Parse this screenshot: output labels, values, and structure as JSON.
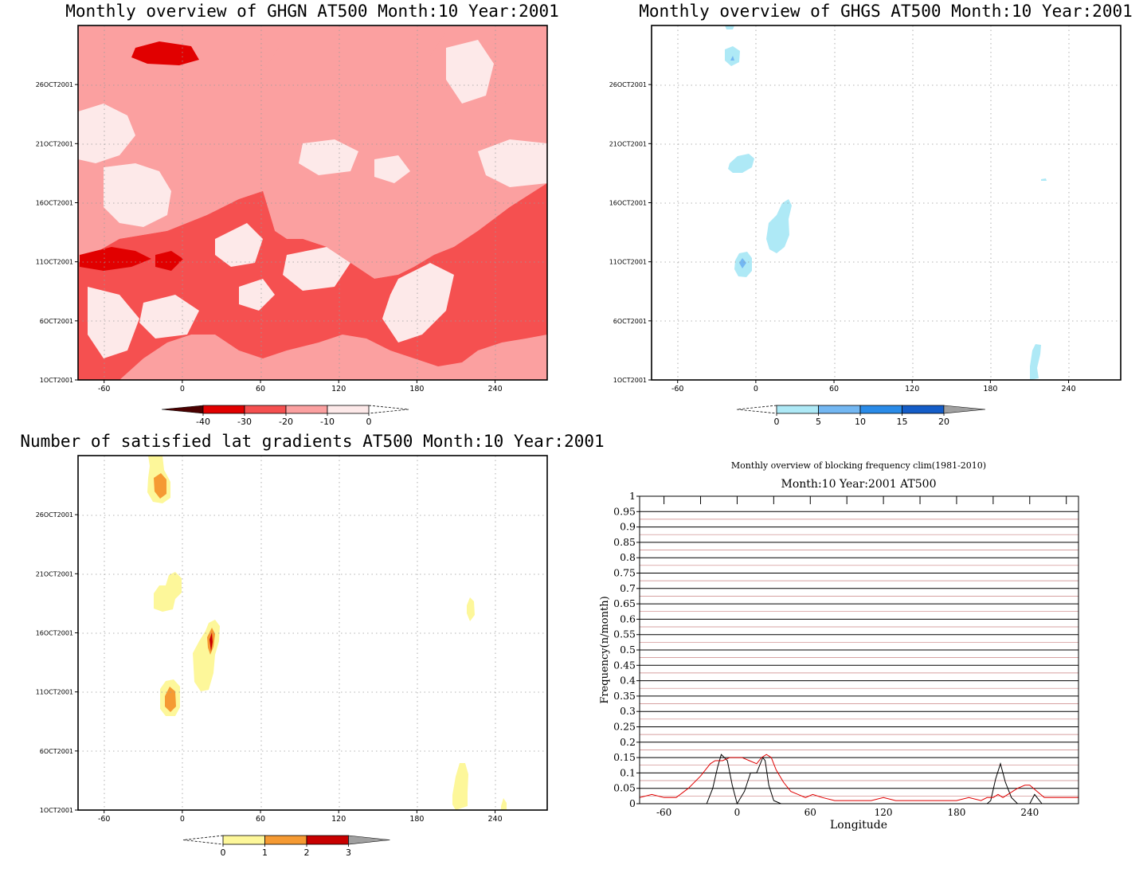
{
  "panels": {
    "ghgn": {
      "title": "Monthly overview of GHGN AT500 Month:10 Year:2001",
      "colorbar_ticks": [
        "-40",
        "-30",
        "-20",
        "-10",
        "0"
      ],
      "colors": [
        "#4a0000",
        "#e10000",
        "#f55050",
        "#fba0a0",
        "#fde9e9"
      ]
    },
    "ghgs": {
      "title": "Monthly overview of GHGS AT500 Month:10 Year:2001",
      "colorbar_ticks": [
        "0",
        "5",
        "10",
        "15",
        "20"
      ],
      "colors": [
        "#aee9f6",
        "#73b7f2",
        "#2a8be8",
        "#145dc8",
        "#a0a0a0"
      ]
    },
    "lat": {
      "title": "Number of satisfied lat gradients AT500 Month:10 Year:2001",
      "colorbar_ticks": [
        "0",
        "1",
        "2",
        "3"
      ],
      "colors": [
        "#fdf79a",
        "#f59a33",
        "#c80000",
        "#a0a0a0"
      ]
    }
  },
  "map_axes": {
    "x_ticks": [
      "-60",
      "0",
      "60",
      "120",
      "180",
      "240"
    ],
    "y_ticks": [
      "1OCT2001",
      "6OCT2001",
      "11OCT2001",
      "16OCT2001",
      "21OCT2001",
      "26OCT2001"
    ]
  },
  "chart_data": [
    {
      "type": "area",
      "title": "Monthly overview of GHGN AT500 Month:10 Year:2001",
      "x_range": [
        -80,
        280
      ],
      "y_range": [
        "1OCT2001",
        "31OCT2001"
      ],
      "levels": [
        -40,
        -30,
        -20,
        -10,
        0
      ],
      "grid": true
    },
    {
      "type": "area",
      "title": "Monthly overview of GHGS AT500 Month:10 Year:2001",
      "x_range": [
        -80,
        280
      ],
      "y_range": [
        "1OCT2001",
        "31OCT2001"
      ],
      "levels": [
        0,
        5,
        10,
        15,
        20
      ],
      "grid": true
    },
    {
      "type": "area",
      "title": "Number of satisfied lat gradients AT500 Month:10 Year:2001",
      "x_range": [
        -80,
        280
      ],
      "y_range": [
        "1OCT2001",
        "31OCT2001"
      ],
      "levels": [
        0,
        1,
        2,
        3
      ],
      "grid": true
    },
    {
      "type": "line",
      "suptitle": "Monthly overview of blocking frequency clim(1981-2010)",
      "title": "Month:10 Year:2001  AT500",
      "xlabel": "Longitude",
      "ylabel": "Frequency(n/month)",
      "xlim": [
        -80,
        280
      ],
      "ylim": [
        0,
        1
      ],
      "x_ticks": [
        "-60",
        "0",
        "60",
        "120",
        "180",
        "240"
      ],
      "y_ticks": [
        "0",
        "0.05",
        "0.1",
        "0.15",
        "0.2",
        "0.25",
        "0.3",
        "0.35",
        "0.4",
        "0.45",
        "0.5",
        "0.55",
        "0.6",
        "0.65",
        "0.7",
        "0.75",
        "0.8",
        "0.85",
        "0.9",
        "0.95",
        "1"
      ],
      "grid": true,
      "series": [
        {
          "color": "#000000",
          "x": [
            -80,
            -25,
            -20,
            -16,
            -13,
            -8,
            -4,
            0,
            6,
            11,
            16,
            21,
            23,
            26,
            30,
            36,
            205,
            208,
            212,
            216,
            220,
            225,
            230,
            240,
            244,
            250,
            280
          ],
          "y": [
            0,
            0,
            0.05,
            0.12,
            0.16,
            0.14,
            0.06,
            0,
            0.04,
            0.1,
            0.1,
            0.15,
            0.14,
            0.06,
            0.01,
            0,
            0,
            0.01,
            0.08,
            0.13,
            0.07,
            0.02,
            0,
            0,
            0.03,
            0,
            0
          ]
        },
        {
          "color": "#e00000",
          "x": [
            -80,
            -70,
            -60,
            -50,
            -40,
            -30,
            -22,
            -18,
            -12,
            -6,
            -2,
            4,
            10,
            16,
            20,
            24,
            28,
            32,
            38,
            44,
            50,
            56,
            62,
            70,
            80,
            90,
            100,
            110,
            120,
            130,
            140,
            150,
            160,
            170,
            180,
            190,
            200,
            205,
            210,
            214,
            218,
            222,
            226,
            230,
            236,
            240,
            246,
            252,
            260,
            270,
            280
          ],
          "y": [
            0.02,
            0.03,
            0.02,
            0.02,
            0.05,
            0.09,
            0.13,
            0.14,
            0.14,
            0.15,
            0.15,
            0.15,
            0.14,
            0.13,
            0.15,
            0.16,
            0.15,
            0.11,
            0.07,
            0.04,
            0.03,
            0.02,
            0.03,
            0.02,
            0.01,
            0.01,
            0.01,
            0.01,
            0.02,
            0.01,
            0.01,
            0.01,
            0.01,
            0.01,
            0.01,
            0.02,
            0.01,
            0.02,
            0.02,
            0.03,
            0.02,
            0.03,
            0.04,
            0.05,
            0.06,
            0.06,
            0.04,
            0.02,
            0.02,
            0.02,
            0.02
          ]
        }
      ]
    }
  ]
}
